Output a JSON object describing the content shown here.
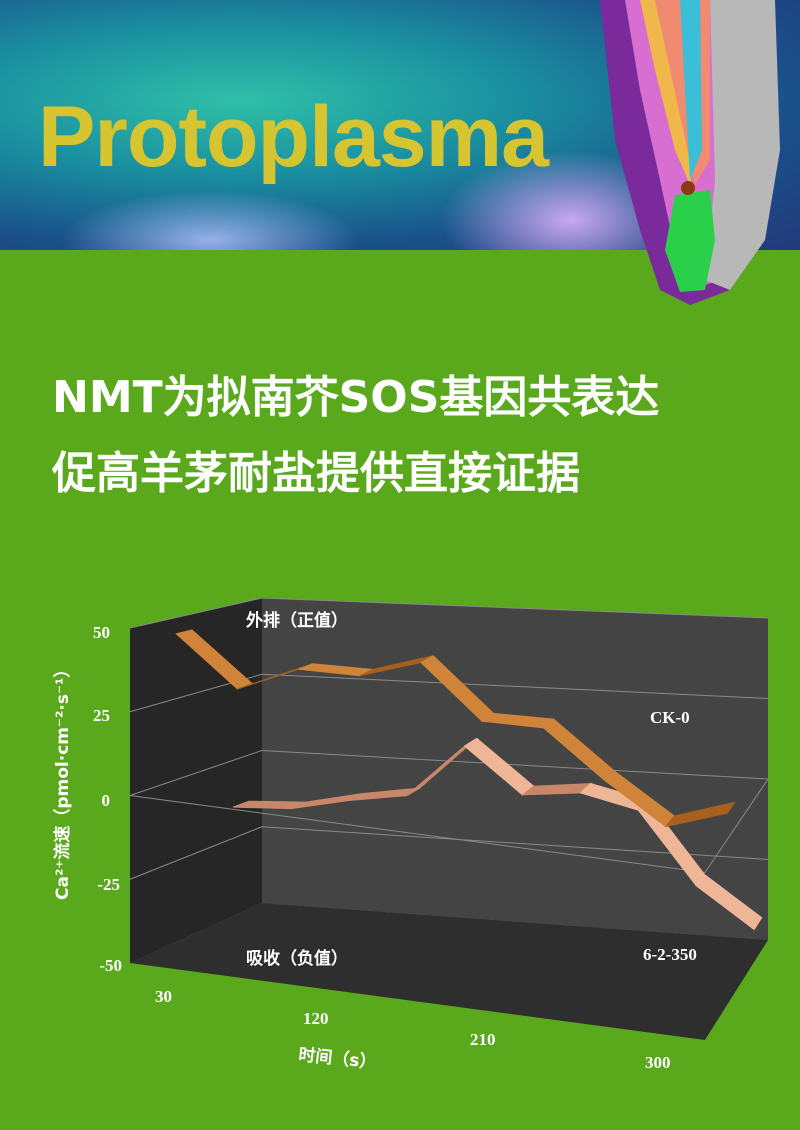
{
  "header": {
    "journal": "Protoplasma"
  },
  "title": {
    "line1": "NMT为拟南芥SOS基因共表达",
    "line2": "促高羊茅耐盐提供直接证据"
  },
  "colors": {
    "background": "#5aa81c",
    "brand": "#d6c530",
    "ck0": "#c8772e",
    "treat": "#e8a98a",
    "panel": "#3a3a3a"
  },
  "chart_data": {
    "type": "line",
    "style": "3d-ribbon",
    "x": [
      30,
      60,
      90,
      120,
      150,
      180,
      210,
      240,
      270,
      300
    ],
    "xticks": [
      "30",
      "120",
      "210",
      "300"
    ],
    "xlabel": "时间（s）",
    "ylabel": "Ca²⁺流速（pmol·cm⁻²·s⁻¹）",
    "yticks": [
      "50",
      "25",
      "0",
      "-25",
      "-50"
    ],
    "ylim": [
      -50,
      50
    ],
    "grid": true,
    "annotations": {
      "top": "外排（正值）",
      "bottom": "吸收（负值）"
    },
    "series": [
      {
        "name": "CK-0",
        "values": [
          45,
          30,
          38,
          38,
          44,
          28,
          28,
          14,
          2,
          8
        ]
      },
      {
        "name": "6-2-350",
        "values": [
          -15,
          -14,
          -10,
          -7,
          10,
          -4,
          -2,
          -6,
          -28,
          -40
        ]
      }
    ]
  }
}
